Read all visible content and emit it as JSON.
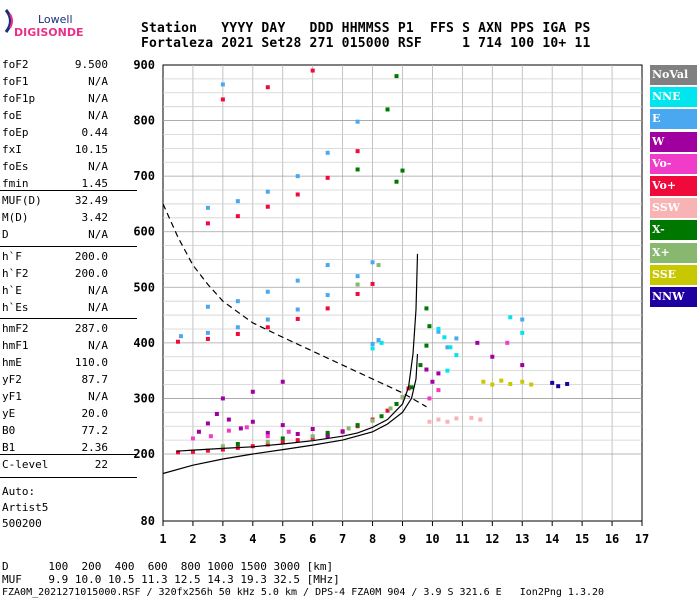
{
  "logo": {
    "brand": "Lowell",
    "product": "DIGISONDE"
  },
  "header": {
    "row1": "Station   YYYY DAY   DDD HHMMSS P1  FFS S AXN PPS IGA PS",
    "row2": "Fortaleza 2021 Set28 271 015000 RSF     1 714 100 10+ 11"
  },
  "params": [
    {
      "group": 1,
      "label": "foF2",
      "value": "9.500"
    },
    {
      "group": 1,
      "label": "foF1",
      "value": "N/A"
    },
    {
      "group": 1,
      "label": "foF1p",
      "value": "N/A"
    },
    {
      "group": 1,
      "label": "foE",
      "value": "N/A"
    },
    {
      "group": 1,
      "label": "foEp",
      "value": "0.44"
    },
    {
      "group": 1,
      "label": "fxI",
      "value": "10.15"
    },
    {
      "group": 1,
      "label": "foEs",
      "value": "N/A"
    },
    {
      "group": 1,
      "label": "fmin",
      "value": "1.45"
    },
    {
      "group": 2,
      "label": "MUF(D)",
      "value": "32.49"
    },
    {
      "group": 2,
      "label": "M(D)",
      "value": "3.42"
    },
    {
      "group": 2,
      "label": "D",
      "value": "N/A"
    },
    {
      "group": 3,
      "label": "h`F",
      "value": "200.0"
    },
    {
      "group": 3,
      "label": "h`F2",
      "value": "200.0"
    },
    {
      "group": 3,
      "label": "h`E",
      "value": "N/A"
    },
    {
      "group": 3,
      "label": "h`Es",
      "value": "N/A"
    },
    {
      "group": 4,
      "label": "hmF2",
      "value": "287.0"
    },
    {
      "group": 4,
      "label": "hmF1",
      "value": "N/A"
    },
    {
      "group": 4,
      "label": "hmE",
      "value": "110.0"
    },
    {
      "group": 4,
      "label": "yF2",
      "value": "87.7"
    },
    {
      "group": 4,
      "label": "yF1",
      "value": "N/A"
    },
    {
      "group": 4,
      "label": "yE",
      "value": "20.0"
    },
    {
      "group": 4,
      "label": "B0",
      "value": "77.2"
    },
    {
      "group": 4,
      "label": "B1",
      "value": "2.36"
    },
    {
      "group": 5,
      "label": "C-level",
      "value": "22"
    }
  ],
  "autoscaler": {
    "line1": "Auto:",
    "line2": "Artist5",
    "line3": "500200"
  },
  "legend": [
    {
      "label": "NoVal",
      "bg": "#808080",
      "fg": "#ffffff"
    },
    {
      "label": "NNE",
      "bg": "#00e5ee",
      "fg": "#ffffff"
    },
    {
      "label": "E",
      "bg": "#4aa8f0",
      "fg": "#ffffff"
    },
    {
      "label": "W",
      "bg": "#a000a0",
      "fg": "#ffffff"
    },
    {
      "label": "Vo-",
      "bg": "#f03cc8",
      "fg": "#ffffff"
    },
    {
      "label": "Vo+",
      "bg": "#f00a3c",
      "fg": "#ffffff"
    },
    {
      "label": "SSW",
      "bg": "#f8b4b4",
      "fg": "#ffffff"
    },
    {
      "label": "X-",
      "bg": "#007800",
      "fg": "#ffffff"
    },
    {
      "label": "X+",
      "bg": "#88b870",
      "fg": "#ffffff"
    },
    {
      "label": "SSE",
      "bg": "#c8c800",
      "fg": "#ffffff"
    },
    {
      "label": "NNW",
      "bg": "#1e00a0",
      "fg": "#ffffff"
    }
  ],
  "bottom": {
    "d_row": "D      100  200  400  600  800 1000 1500 3000 [km]",
    "muf_row": "MUF    9.9 10.0 10.5 11.3 12.5 14.3 19.3 32.5 [MHz]",
    "footer": "FZA0M_2021271015000.RSF / 320fx256h 50 kHz 5.0 km / DPS-4 FZA0M 904 / 3.9 S 321.6 E   Ion2Png 1.3.20"
  },
  "chart_data": {
    "type": "scatter",
    "title": "",
    "xlabel": "",
    "ylabel": "",
    "xlim": [
      1,
      17
    ],
    "ylim": [
      80,
      900
    ],
    "x_ticks": [
      "1",
      "2",
      "3",
      "4",
      "5",
      "6",
      "7",
      "8",
      "9",
      "10",
      "11",
      "12",
      "13",
      "14",
      "15",
      "16",
      "17"
    ],
    "y_ticks": [
      "80",
      "200",
      "300",
      "400",
      "500",
      "600",
      "700",
      "800",
      "900"
    ],
    "grid": true,
    "legend_position": "right",
    "series": [
      {
        "name": "Vo+",
        "color": "#f00a3c",
        "points": [
          [
            1.5,
            203
          ],
          [
            2.0,
            204
          ],
          [
            2.5,
            206
          ],
          [
            3.0,
            208
          ],
          [
            3.5,
            211
          ],
          [
            4.0,
            214
          ],
          [
            4.5,
            217
          ],
          [
            5.0,
            221
          ],
          [
            5.5,
            225
          ],
          [
            6.0,
            229
          ],
          [
            6.5,
            234
          ],
          [
            7.0,
            241
          ],
          [
            7.5,
            250
          ],
          [
            8.0,
            262
          ],
          [
            8.5,
            278
          ],
          [
            8.8,
            290
          ],
          [
            9.0,
            302
          ],
          [
            9.2,
            318
          ],
          [
            1.5,
            402
          ],
          [
            2.5,
            407
          ],
          [
            3.5,
            416
          ],
          [
            4.5,
            428
          ],
          [
            5.5,
            443
          ],
          [
            6.5,
            462
          ],
          [
            7.5,
            488
          ],
          [
            8.0,
            506
          ],
          [
            2.5,
            615
          ],
          [
            3.5,
            628
          ],
          [
            4.5,
            645
          ],
          [
            5.5,
            667
          ],
          [
            6.5,
            697
          ],
          [
            7.5,
            745
          ],
          [
            3.0,
            838
          ],
          [
            4.5,
            860
          ],
          [
            6.0,
            890
          ]
        ]
      },
      {
        "name": "E",
        "color": "#4aa8f0",
        "points": [
          [
            1.6,
            412
          ],
          [
            2.5,
            418
          ],
          [
            3.5,
            428
          ],
          [
            4.5,
            442
          ],
          [
            5.5,
            460
          ],
          [
            6.5,
            486
          ],
          [
            7.5,
            520
          ],
          [
            8.0,
            545
          ],
          [
            2.5,
            465
          ],
          [
            3.5,
            475
          ],
          [
            4.5,
            492
          ],
          [
            5.5,
            512
          ],
          [
            6.5,
            540
          ],
          [
            2.5,
            643
          ],
          [
            3.5,
            655
          ],
          [
            4.5,
            672
          ],
          [
            5.5,
            700
          ],
          [
            6.5,
            742
          ],
          [
            7.5,
            798
          ],
          [
            3.0,
            865
          ],
          [
            10.2,
            420
          ],
          [
            10.5,
            392
          ],
          [
            10.8,
            408
          ],
          [
            13.0,
            442
          ],
          [
            8.0,
            398
          ],
          [
            8.2,
            405
          ]
        ]
      },
      {
        "name": "NNE",
        "color": "#00e5ee",
        "points": [
          [
            10.2,
            425
          ],
          [
            10.4,
            410
          ],
          [
            10.6,
            392
          ],
          [
            10.8,
            378
          ],
          [
            10.5,
            350
          ],
          [
            13.0,
            418
          ],
          [
            12.6,
            446
          ],
          [
            8.0,
            390
          ],
          [
            8.3,
            400
          ]
        ]
      },
      {
        "name": "W",
        "color": "#a000a0",
        "points": [
          [
            2.2,
            240
          ],
          [
            2.5,
            255
          ],
          [
            2.8,
            272
          ],
          [
            3.2,
            262
          ],
          [
            3.6,
            246
          ],
          [
            4.0,
            258
          ],
          [
            4.5,
            238
          ],
          [
            5.0,
            252
          ],
          [
            5.5,
            236
          ],
          [
            6.0,
            245
          ],
          [
            6.5,
            232
          ],
          [
            7.0,
            240
          ],
          [
            3.0,
            300
          ],
          [
            4.0,
            312
          ],
          [
            5.0,
            330
          ],
          [
            9.8,
            352
          ],
          [
            10.0,
            330
          ],
          [
            10.2,
            345
          ],
          [
            12.0,
            375
          ],
          [
            13.0,
            360
          ],
          [
            11.5,
            400
          ]
        ]
      },
      {
        "name": "Vo-",
        "color": "#f03cc8",
        "points": [
          [
            2.0,
            228
          ],
          [
            2.6,
            232
          ],
          [
            3.2,
            242
          ],
          [
            3.8,
            248
          ],
          [
            4.5,
            232
          ],
          [
            5.2,
            240
          ],
          [
            9.9,
            300
          ],
          [
            10.2,
            315
          ],
          [
            12.5,
            400
          ]
        ]
      },
      {
        "name": "SSW",
        "color": "#f8b4b4",
        "points": [
          [
            9.9,
            258
          ],
          [
            10.2,
            262
          ],
          [
            10.5,
            258
          ],
          [
            10.8,
            264
          ],
          [
            11.3,
            265
          ],
          [
            11.6,
            262
          ]
        ]
      },
      {
        "name": "X-",
        "color": "#007800",
        "points": [
          [
            3.5,
            218
          ],
          [
            5.0,
            228
          ],
          [
            6.5,
            238
          ],
          [
            7.5,
            252
          ],
          [
            8.3,
            268
          ],
          [
            8.8,
            290
          ],
          [
            9.3,
            320
          ],
          [
            9.6,
            360
          ],
          [
            9.8,
            395
          ],
          [
            9.9,
            430
          ],
          [
            9.8,
            462
          ],
          [
            7.5,
            712
          ],
          [
            8.8,
            690
          ],
          [
            9.0,
            710
          ],
          [
            8.5,
            820
          ],
          [
            8.8,
            880
          ]
        ]
      },
      {
        "name": "X+",
        "color": "#88b870",
        "points": [
          [
            3.0,
            214
          ],
          [
            4.5,
            222
          ],
          [
            6.0,
            232
          ],
          [
            7.2,
            246
          ],
          [
            8.0,
            260
          ],
          [
            8.6,
            282
          ],
          [
            9.0,
            302
          ],
          [
            7.5,
            505
          ],
          [
            8.2,
            540
          ]
        ]
      },
      {
        "name": "SSE",
        "color": "#c8c800",
        "points": [
          [
            11.7,
            330
          ],
          [
            12.0,
            325
          ],
          [
            12.3,
            332
          ],
          [
            12.6,
            326
          ],
          [
            13.0,
            330
          ],
          [
            13.3,
            325
          ]
        ]
      },
      {
        "name": "NNW",
        "color": "#1e00a0",
        "points": [
          [
            14.0,
            328
          ],
          [
            14.2,
            322
          ],
          [
            14.5,
            326
          ]
        ]
      }
    ],
    "curves": [
      {
        "name": "extraordinary-trace-fit",
        "color": "#000000",
        "style": "solid",
        "points": [
          [
            1.45,
            205
          ],
          [
            2,
            207
          ],
          [
            3,
            210
          ],
          [
            4,
            213
          ],
          [
            5,
            218
          ],
          [
            6,
            224
          ],
          [
            7,
            232
          ],
          [
            7.5,
            238
          ],
          [
            8,
            248
          ],
          [
            8.5,
            262
          ],
          [
            9.0,
            290
          ],
          [
            9.2,
            320
          ],
          [
            9.35,
            380
          ],
          [
            9.45,
            460
          ],
          [
            9.5,
            560
          ]
        ]
      },
      {
        "name": "profile-lower",
        "color": "#000000",
        "style": "solid",
        "points": [
          [
            1,
            165
          ],
          [
            2,
            180
          ],
          [
            3,
            191
          ],
          [
            4,
            200
          ],
          [
            5,
            208
          ],
          [
            6,
            216
          ],
          [
            7,
            225
          ],
          [
            8,
            240
          ],
          [
            8.5,
            254
          ],
          [
            9.0,
            275
          ],
          [
            9.3,
            300
          ],
          [
            9.45,
            335
          ],
          [
            9.5,
            380
          ]
        ]
      },
      {
        "name": "muf-curve",
        "color": "#000000",
        "style": "dashed",
        "points": [
          [
            1,
            650
          ],
          [
            1.5,
            590
          ],
          [
            2,
            540
          ],
          [
            2.5,
            505
          ],
          [
            3,
            475
          ],
          [
            4,
            436
          ],
          [
            5,
            410
          ],
          [
            6,
            385
          ],
          [
            7,
            360
          ],
          [
            8,
            335
          ],
          [
            9,
            310
          ],
          [
            9.8,
            285
          ]
        ]
      }
    ]
  }
}
